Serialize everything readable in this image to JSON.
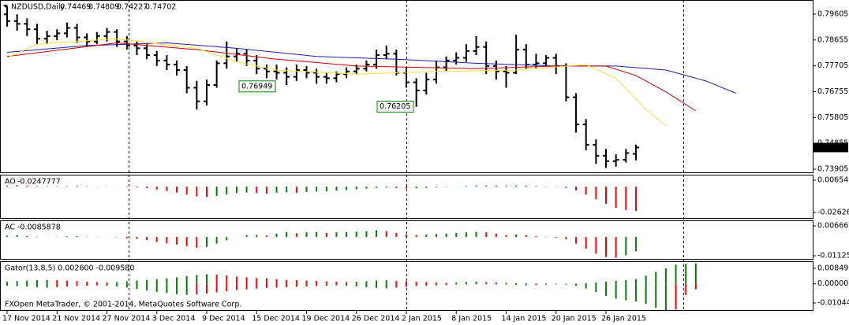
{
  "chart_data": [
    {
      "type": "ohlc",
      "title": "NZDUSD,Daily",
      "color": "#000000",
      "open": [
        0.796,
        0.7935,
        0.7925,
        0.7905,
        0.787,
        0.788,
        0.789,
        0.791,
        0.7875,
        0.786,
        0.788,
        0.7895,
        0.786,
        0.7845,
        0.7835,
        0.781,
        0.779,
        0.7775,
        0.7755,
        0.769,
        0.764,
        0.77,
        0.778,
        0.7805,
        0.7815,
        0.779,
        0.776,
        0.775,
        0.7745,
        0.773,
        0.7755,
        0.7745,
        0.773,
        0.7725,
        0.774,
        0.775,
        0.776,
        0.7775,
        0.781,
        0.7815,
        0.7745,
        0.771,
        0.768,
        0.772,
        0.7765,
        0.779,
        0.78,
        0.7825,
        0.784,
        0.777,
        0.775,
        0.7745,
        0.783,
        0.7775,
        0.778,
        0.78,
        0.777,
        0.7655,
        0.7555,
        0.748,
        0.744,
        0.742,
        0.7425,
        0.74469
      ],
      "high": [
        0.799,
        0.796,
        0.7945,
        0.7925,
        0.79,
        0.7905,
        0.793,
        0.7925,
        0.789,
        0.7895,
        0.791,
        0.7905,
        0.788,
        0.786,
        0.785,
        0.7825,
        0.781,
        0.779,
        0.777,
        0.7715,
        0.772,
        0.779,
        0.786,
        0.7835,
        0.783,
        0.781,
        0.7775,
        0.7775,
        0.7765,
        0.7775,
        0.777,
        0.776,
        0.7745,
        0.775,
        0.7765,
        0.7775,
        0.779,
        0.783,
        0.7845,
        0.783,
        0.7765,
        0.7725,
        0.7745,
        0.779,
        0.7805,
        0.782,
        0.785,
        0.788,
        0.786,
        0.779,
        0.777,
        0.7885,
        0.785,
        0.7815,
        0.781,
        0.7815,
        0.778,
        0.767,
        0.7575,
        0.75,
        0.7465,
        0.7445,
        0.7465,
        0.74809
      ],
      "low": [
        0.7915,
        0.79,
        0.788,
        0.785,
        0.785,
        0.7865,
        0.7875,
        0.7855,
        0.784,
        0.785,
        0.786,
        0.784,
        0.783,
        0.781,
        0.7795,
        0.777,
        0.7755,
        0.7735,
        0.767,
        0.761,
        0.7625,
        0.769,
        0.776,
        0.7785,
        0.777,
        0.774,
        0.7725,
        0.772,
        0.77,
        0.7715,
        0.7725,
        0.7705,
        0.7705,
        0.771,
        0.7725,
        0.774,
        0.775,
        0.776,
        0.7795,
        0.7735,
        0.769,
        0.762,
        0.7665,
        0.7705,
        0.775,
        0.7775,
        0.7785,
        0.781,
        0.774,
        0.772,
        0.769,
        0.774,
        0.776,
        0.776,
        0.777,
        0.774,
        0.764,
        0.7525,
        0.746,
        0.741,
        0.7395,
        0.74,
        0.7415,
        0.74227
      ],
      "close": [
        0.7935,
        0.7925,
        0.7905,
        0.787,
        0.788,
        0.789,
        0.791,
        0.7875,
        0.786,
        0.788,
        0.7895,
        0.786,
        0.7845,
        0.7835,
        0.781,
        0.779,
        0.7775,
        0.7755,
        0.769,
        0.764,
        0.77,
        0.778,
        0.7805,
        0.7815,
        0.779,
        0.776,
        0.775,
        0.7745,
        0.773,
        0.7755,
        0.7745,
        0.773,
        0.7725,
        0.774,
        0.775,
        0.776,
        0.7775,
        0.781,
        0.7815,
        0.7745,
        0.771,
        0.768,
        0.772,
        0.7765,
        0.779,
        0.78,
        0.7825,
        0.784,
        0.777,
        0.775,
        0.7745,
        0.783,
        0.7775,
        0.778,
        0.78,
        0.777,
        0.7655,
        0.7555,
        0.748,
        0.744,
        0.742,
        0.7425,
        0.745,
        0.74702
      ],
      "lines": [
        {
          "color": "#1e1ea0",
          "x": [
            0,
            8,
            16,
            23,
            31,
            39,
            47,
            55,
            61,
            66,
            70,
            73
          ],
          "values": [
            0.782,
            0.7845,
            0.7855,
            0.7835,
            0.7805,
            0.7795,
            0.778,
            0.777,
            0.777,
            0.7755,
            0.7715,
            0.767
          ]
        },
        {
          "color": "#c00000",
          "x": [
            0,
            11,
            19,
            27,
            35,
            47,
            55,
            60,
            63,
            66,
            69
          ],
          "values": [
            0.7805,
            0.7855,
            0.783,
            0.7795,
            0.777,
            0.776,
            0.777,
            0.777,
            0.7735,
            0.7675,
            0.7605
          ]
        },
        {
          "color": "#f0e040",
          "x": [
            0,
            3,
            11,
            19,
            23,
            27,
            35,
            43,
            51,
            58,
            61,
            64,
            66
          ],
          "values": [
            0.78,
            0.785,
            0.787,
            0.7835,
            0.7785,
            0.7755,
            0.774,
            0.775,
            0.7755,
            0.7775,
            0.7725,
            0.761,
            0.755
          ]
        }
      ],
      "price_labels": [
        0.76949,
        0.76205
      ],
      "price_label_color": "#008000",
      "ylim": [
        0.7376,
        0.80126
      ],
      "yticks": [
        0.79605,
        0.78655,
        0.77705,
        0.76755,
        0.75805,
        0.74855,
        0.73905
      ]
    },
    {
      "type": "histogram",
      "name": "AO",
      "up_color": "#008000",
      "down_color": "#ff0000",
      "values": [
        0.0012,
        0.0015,
        0.001,
        0.0006,
        0.0004,
        0.0003,
        0.0005,
        0.0007,
        0.0004,
        0.0002,
        0.0003,
        0.0001,
        -0.0004,
        -0.0008,
        -0.0015,
        -0.003,
        -0.0045,
        -0.006,
        -0.008,
        -0.01,
        -0.0105,
        -0.0095,
        -0.008,
        -0.0065,
        -0.006,
        -0.0065,
        -0.007,
        -0.0062,
        -0.0058,
        -0.0063,
        -0.0055,
        -0.005,
        -0.0048,
        -0.0042,
        -0.0035,
        -0.0028,
        -0.002,
        -0.0012,
        -0.001,
        -0.0014,
        -0.0018,
        -0.0016,
        -0.0012,
        -0.0008,
        -0.0004,
        0.0002,
        0.0006,
        0.001,
        0.0012,
        0.001,
        0.0008,
        0.0011,
        0.0009,
        0.0006,
        0.0003,
        -0.0002,
        -0.0012,
        -0.004,
        -0.008,
        -0.013,
        -0.0175,
        -0.0215,
        -0.024,
        -0.0247777
      ],
      "ylim": [
        -0.03267,
        0.01215
      ],
      "yticks": [
        0.006549,
        -0.026269
      ]
    },
    {
      "type": "histogram",
      "name": "AC",
      "up_color": "#008000",
      "down_color": "#ff0000",
      "values": [
        0.0008,
        0.001,
        0.0005,
        0.0002,
        0.0001,
        0.0002,
        0.0004,
        0.0005,
        0.0002,
        -0.0001,
        0.0001,
        -0.0002,
        -0.0008,
        -0.0012,
        -0.0018,
        -0.003,
        -0.0038,
        -0.0045,
        -0.0055,
        -0.0065,
        -0.006,
        -0.004,
        -0.002,
        0.0,
        0.001,
        0.0012,
        0.0008,
        0.002,
        0.003,
        0.0022,
        0.0028,
        0.003,
        0.0025,
        0.0028,
        0.003,
        0.0032,
        0.0035,
        0.004,
        0.0035,
        0.0025,
        0.0015,
        0.0012,
        0.0015,
        0.0018,
        0.002,
        0.0025,
        0.0028,
        0.003,
        0.0028,
        0.002,
        0.0012,
        0.0015,
        0.001,
        0.0005,
        0.0002,
        -0.0005,
        -0.0015,
        -0.004,
        -0.007,
        -0.01,
        -0.012,
        -0.0125,
        -0.011,
        -0.0085878
      ],
      "ylim": [
        -0.01361,
        0.00996
      ],
      "yticks": [
        0.006661,
        -0.011255
      ]
    },
    {
      "type": "gator",
      "title": "Gator(13,8,5) 0.002600 -0.009580",
      "up_color": "#008000",
      "down_color": "#ff0000",
      "upper": [
        0.0012,
        0.0015,
        0.0018,
        0.002,
        0.0022,
        0.002,
        0.0018,
        0.0015,
        0.0012,
        0.001,
        0.0008,
        0.001,
        0.0014,
        0.0018,
        0.0022,
        0.0026,
        0.003,
        0.0036,
        0.0042,
        0.0048,
        0.0052,
        0.005,
        0.0046,
        0.004,
        0.0036,
        0.0032,
        0.003,
        0.0026,
        0.0022,
        0.002,
        0.0018,
        0.0016,
        0.0014,
        0.0012,
        0.001,
        0.0012,
        0.0015,
        0.0018,
        0.002,
        0.0016,
        0.0014,
        0.0012,
        0.001,
        0.0008,
        0.0006,
        0.0008,
        0.001,
        0.0012,
        0.001,
        0.0008,
        0.0006,
        0.0004,
        0.0003,
        0.0002,
        0.0002,
        0.0001,
        0.0001,
        0.0002,
        0.0004,
        0.0008,
        0.0012,
        0.0016,
        0.002,
        0.0026,
        0.0045,
        0.0065,
        0.0085,
        0.0105,
        0.011,
        0.0112
      ],
      "lower": [
        -0.001,
        -0.0012,
        -0.0015,
        -0.0018,
        -0.002,
        -0.0018,
        -0.0015,
        -0.0012,
        -0.001,
        -0.0008,
        -0.001,
        -0.0014,
        -0.002,
        -0.0028,
        -0.0036,
        -0.0044,
        -0.005,
        -0.0056,
        -0.006,
        -0.0058,
        -0.0052,
        -0.0046,
        -0.004,
        -0.0034,
        -0.003,
        -0.0026,
        -0.0022,
        -0.002,
        -0.0018,
        -0.0016,
        -0.0014,
        -0.0012,
        -0.001,
        -0.0008,
        -0.001,
        -0.0014,
        -0.0018,
        -0.0022,
        -0.0024,
        -0.002,
        -0.0016,
        -0.0012,
        -0.001,
        -0.0008,
        -0.0006,
        -0.0004,
        -0.0003,
        -0.0002,
        -0.0002,
        -0.0003,
        -0.0004,
        -0.0006,
        -0.0008,
        -0.0006,
        -0.0004,
        -0.0003,
        -0.0004,
        -0.001,
        -0.0025,
        -0.0045,
        -0.0065,
        -0.008,
        -0.009,
        -0.00958,
        -0.011,
        -0.013,
        -0.0145,
        -0.014,
        -0.006,
        -0.003
      ],
      "ylim": [
        -0.01474,
        0.01237
      ],
      "yticks": [
        0.008495,
        {
          "value": 0,
          "label": "0.000000"
        },
        -0.01044
      ],
      "xticks": [
        {
          "value": 0,
          "label": "17 Nov 2014"
        },
        {
          "value": 5,
          "label": "21 Nov 2014"
        },
        {
          "value": 10,
          "label": "27 Nov 2014"
        },
        {
          "value": 15,
          "label": "3 Dec 2014"
        },
        {
          "value": 20,
          "label": "9 Dec 2014"
        },
        {
          "value": 25,
          "label": "15 Dec 2014"
        },
        {
          "value": 30,
          "label": "19 Dec 2014"
        },
        {
          "value": 35,
          "label": "26 Dec 2014"
        },
        {
          "value": 40,
          "label": "2 Jan 2015"
        },
        {
          "value": 45,
          "label": "8 Jan 2015"
        },
        {
          "value": 50,
          "label": "14 Jan 2015"
        },
        {
          "value": 55,
          "label": "20 Jan 2015"
        },
        {
          "value": 60,
          "label": "26 Jan 2015"
        }
      ]
    }
  ],
  "footer": "FXOpen MetaTrader, © 2001-2014, MetaQuotes Software Corp."
}
